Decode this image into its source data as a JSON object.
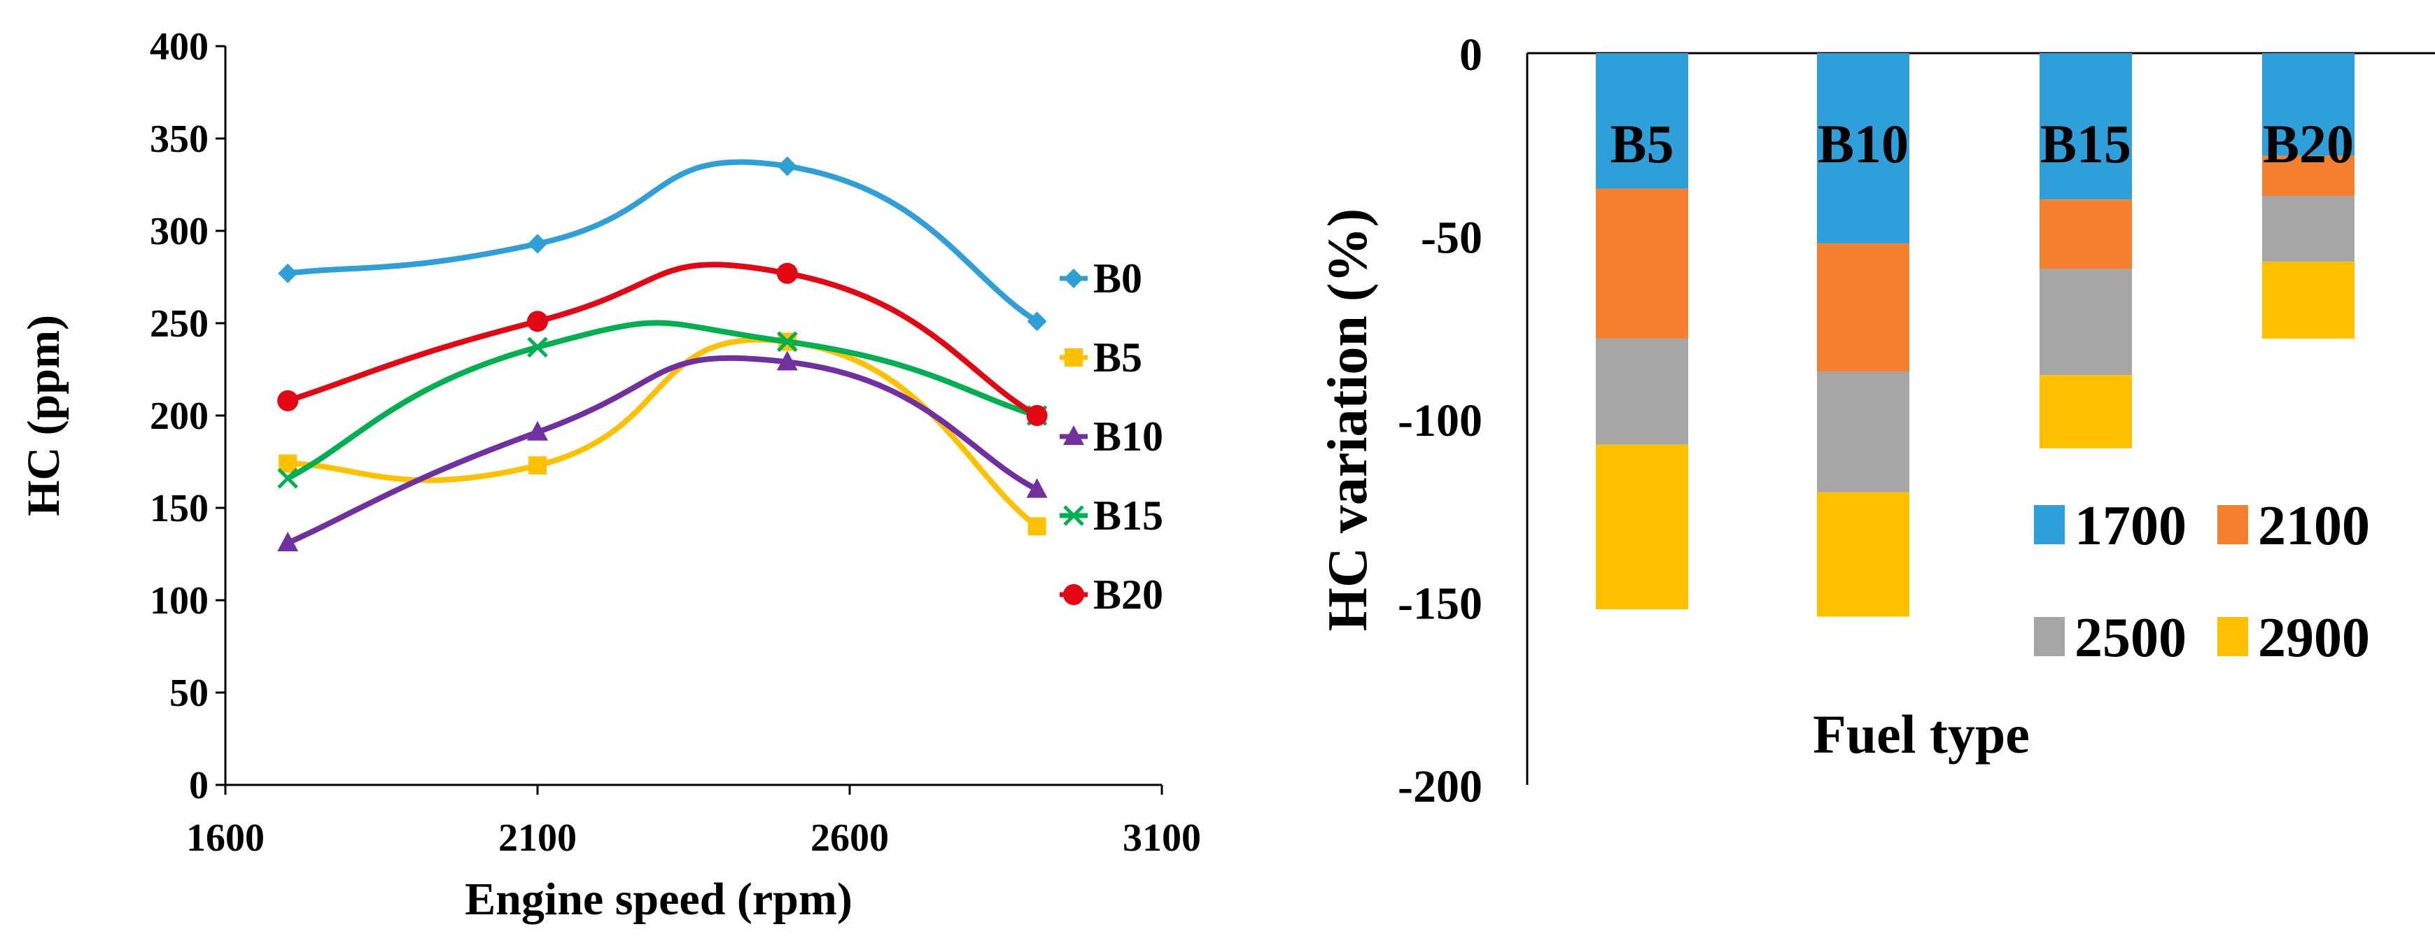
{
  "chart_data": [
    {
      "type": "line",
      "title": "",
      "xlabel": "Engine speed (rpm)",
      "ylabel": "HC (ppm)",
      "xlim": [
        1600,
        3100
      ],
      "ylim": [
        0,
        400
      ],
      "xticks": [
        "1600",
        "2100",
        "2600",
        "3100"
      ],
      "yticks": [
        "0",
        "50",
        "100",
        "150",
        "200",
        "250",
        "300",
        "350",
        "400"
      ],
      "x": [
        1700,
        2100,
        2500,
        2900
      ],
      "legend_position": "right",
      "series": [
        {
          "name": "B0",
          "color": "#2f9fd8",
          "marker": "diamond",
          "values": [
            277,
            293,
            335,
            251
          ]
        },
        {
          "name": "B5",
          "color": "#ffc000",
          "marker": "square",
          "values": [
            174,
            173,
            240,
            140
          ]
        },
        {
          "name": "B10",
          "color": "#7030a0",
          "marker": "triangle",
          "values": [
            131,
            191,
            229,
            160
          ]
        },
        {
          "name": "B15",
          "color": "#00b050",
          "marker": "x",
          "values": [
            166,
            237,
            240,
            200
          ]
        },
        {
          "name": "B20",
          "color": "#e30613",
          "marker": "circle",
          "values": [
            208,
            251,
            277,
            200
          ]
        }
      ]
    },
    {
      "type": "bar",
      "stacked": true,
      "title": "",
      "xlabel": "Fuel type",
      "ylabel": "HC variation (%)",
      "ylim": [
        -200,
        0
      ],
      "yticks": [
        "0",
        "-50",
        "-100",
        "-150",
        "-200"
      ],
      "categories": [
        "B5",
        "B10",
        "B15",
        "B20"
      ],
      "legend_position": "bottom-right",
      "series": [
        {
          "name": "1700",
          "color": "#2e9fd9",
          "values": [
            -37,
            -52,
            -40,
            -28
          ]
        },
        {
          "name": "2100",
          "color": "#f47f2f",
          "values": [
            -41,
            -35,
            -19,
            -11
          ]
        },
        {
          "name": "2500",
          "color": "#a6a6a6",
          "values": [
            -29,
            -33,
            -29,
            -18
          ]
        },
        {
          "name": "2900",
          "color": "#ffc000",
          "values": [
            -45,
            -34,
            -20,
            -21
          ]
        }
      ]
    }
  ]
}
